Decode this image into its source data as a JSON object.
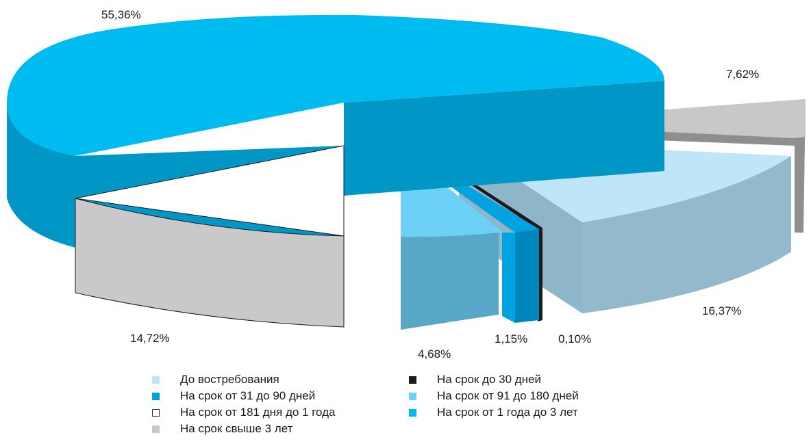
{
  "chart_data": {
    "type": "pie",
    "style": "3d-exploded",
    "categories": [
      "До востребования",
      "На срок до 30 дней",
      "На срок от 31 до 90 дней",
      "На срок от 91  до 180 дней",
      "На срок от 181 дня до 1 года",
      "На срок от 1 года до 3 лет",
      "На срок свыше 3 лет"
    ],
    "values": [
      16.37,
      0.1,
      1.15,
      4.68,
      14.72,
      55.36,
      7.62
    ],
    "value_labels": [
      "16,37%",
      "0,10%",
      "1,15%",
      "4,68%",
      "14,72%",
      "55,36%",
      "7,62%"
    ],
    "colors": {
      "demand": "#bfe6f8",
      "upto30": "#1a1a1a",
      "d31_90": "#00a2e0",
      "d91_180": "#6dd0f6",
      "d181_1y": "#ffffff",
      "y1_3": "#00b9ef",
      "over3": "#c8c8c8"
    },
    "legend_position": "bottom"
  },
  "legend": {
    "items": [
      {
        "label": "До востребования",
        "color": "#bfe6f8"
      },
      {
        "label": "На срок до 30 дней",
        "color": "#1a1a1a"
      },
      {
        "label": "На срок от 31 до 90 дней",
        "color": "#00a2e0"
      },
      {
        "label": "На срок от 91  до 180 дней",
        "color": "#6dd0f6"
      },
      {
        "label": "На срок от 181 дня до 1 года",
        "color": "#ffffff",
        "outlined": true
      },
      {
        "label": "На срок от 1 года до 3 лет",
        "color": "#00b9ef"
      },
      {
        "label": "На срок свыше 3 лет",
        "color": "#c8c8c8"
      }
    ]
  }
}
